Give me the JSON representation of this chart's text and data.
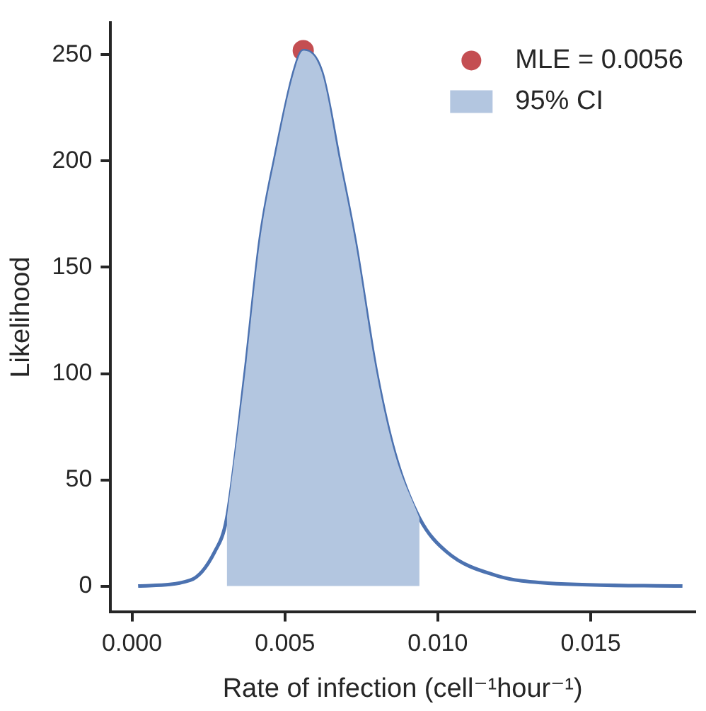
{
  "chart_data": {
    "type": "line",
    "xlabel": "Rate of infection (cell⁻¹hour⁻¹)",
    "ylabel": "Likelihood",
    "xlim": [
      -0.0007,
      0.0184
    ],
    "xticks": [
      {
        "value": 0,
        "label": "0.000"
      },
      {
        "value": 0.005,
        "label": "0.005"
      },
      {
        "value": 0.01,
        "label": "0.010"
      },
      {
        "value": 0.015,
        "label": "0.015"
      }
    ],
    "ylim": [
      -12,
      265
    ],
    "yticks": [
      0,
      50,
      100,
      150,
      200,
      250
    ],
    "grid": false,
    "legend": "top right",
    "series": [
      {
        "type": "area",
        "name": "95% CI",
        "color": "#b3c6e0",
        "x": [
          0.0031,
          0.0037,
          0.0042,
          0.0047,
          0.0053,
          0.0056,
          0.0062,
          0.0068,
          0.0073,
          0.008,
          0.0086,
          0.0094
        ],
        "values": [
          32,
          100,
          164,
          203,
          242,
          252,
          242,
          199,
          162,
          100,
          62,
          32
        ]
      },
      {
        "color": "#4c72b0",
        "marker": "none",
        "x": [
          0.0002,
          0.0019,
          0.0027,
          0.0031,
          0.0037,
          0.0042,
          0.0047,
          0.0053,
          0.0056,
          0.0062,
          0.0068,
          0.0073,
          0.008,
          0.0086,
          0.0094,
          0.0103,
          0.0119,
          0.0136,
          0.018
        ],
        "values": [
          0,
          2.7,
          16,
          32,
          100,
          164,
          203,
          242,
          252,
          242,
          199,
          162,
          100,
          62,
          32,
          16,
          5,
          1.4,
          0
        ]
      },
      {
        "type": "scatter",
        "name": "MLE = 0.0056",
        "color": "#c44e52",
        "marker": "circle",
        "x": [
          0.0056
        ],
        "values": [
          252
        ]
      }
    ]
  }
}
